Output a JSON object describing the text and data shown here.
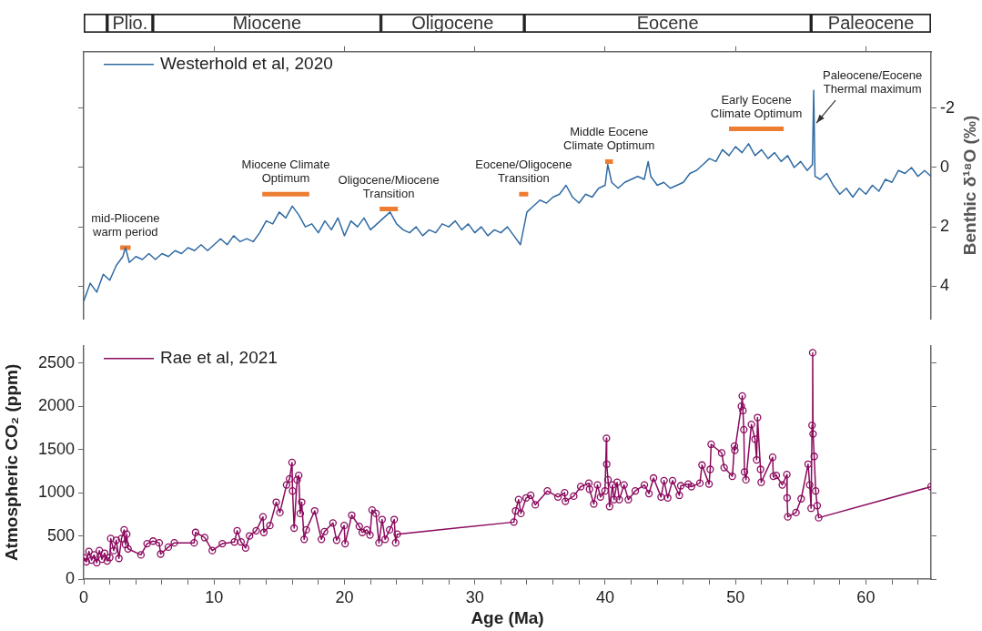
{
  "chart_data": [
    {
      "type": "bar",
      "orientation": "horizontal",
      "stacked": true,
      "categories": [
        null
      ],
      "xlim": [
        0,
        65
      ],
      "tick_labels": false,
      "series": [
        {
          "color": "#ffffff",
          "values": [
            1.8
          ],
          "value_labels": [
            null
          ]
        },
        {
          "color": "#ffffff",
          "values": [
            3.5
          ],
          "value_labels": [
            "Plio."
          ]
        },
        {
          "color": "#ffffff",
          "values": [
            17.5
          ],
          "value_labels": [
            "Miocene"
          ]
        },
        {
          "color": "#ffffff",
          "values": [
            11.0
          ],
          "value_labels": [
            "Oligocene"
          ]
        },
        {
          "color": "#ffffff",
          "values": [
            22.0
          ],
          "value_labels": [
            "Eocene"
          ]
        },
        {
          "color": "#ffffff",
          "values": [
            9.2
          ],
          "value_labels": [
            "Paleocene"
          ]
        }
      ]
    },
    {
      "type": "line",
      "xlim": [
        0,
        65
      ],
      "xticks": [
        {
          "value": 10,
          "label": null
        },
        {
          "value": 20,
          "label": null
        },
        {
          "value": 30,
          "label": null
        },
        {
          "value": 40,
          "label": null
        },
        {
          "value": 50,
          "label": null
        },
        {
          "value": 60,
          "label": null
        }
      ],
      "ylim": [
        5.1,
        -3.9
      ],
      "yticks": [
        -2,
        0,
        2,
        4
      ],
      "ylabel": "Benthic δ¹⁸O (‰)",
      "tick_labels": "y",
      "grid": false,
      "legend": "top left",
      "series": [
        {
          "name": "Westerhold et al, 2020",
          "color": "#2f6aa3",
          "x": [
            0,
            0.5,
            1,
            1.5,
            2,
            2.5,
            3,
            3.2,
            3.5,
            4,
            4.5,
            5,
            5.5,
            6,
            6.5,
            7,
            7.5,
            8,
            8.5,
            9,
            9.5,
            10,
            10.5,
            11,
            11.5,
            12,
            12.5,
            13,
            13.5,
            14,
            14.5,
            15,
            15.5,
            16,
            16.5,
            17,
            17.5,
            18,
            18.5,
            19,
            19.5,
            20,
            20.5,
            21,
            21.5,
            22,
            22.5,
            23,
            23.5,
            24,
            24.5,
            25,
            25.5,
            26,
            26.5,
            27,
            27.5,
            28,
            28.5,
            29,
            29.5,
            30,
            30.5,
            31,
            31.5,
            32,
            32.5,
            33,
            33.5,
            34,
            34.5,
            35,
            35.5,
            36,
            36.5,
            37,
            37.5,
            38,
            38.5,
            39,
            39.5,
            40,
            40.2,
            40.5,
            41,
            41.5,
            42,
            42.5,
            43,
            43.3,
            43.5,
            44,
            44.5,
            45,
            45.5,
            46,
            46.5,
            47,
            47.5,
            48,
            48.5,
            49,
            49.5,
            50,
            50.5,
            51,
            51.5,
            52,
            52.5,
            53,
            53.5,
            54,
            54.5,
            55,
            55.5,
            55.9,
            56,
            56.1,
            56.5,
            57,
            57.5,
            58,
            58.5,
            59,
            59.5,
            60,
            60.5,
            61,
            61.5,
            62,
            62.5,
            63,
            63.5,
            64,
            64.5,
            65
          ],
          "values": [
            4.5,
            3.9,
            4.2,
            3.6,
            3.8,
            3.3,
            3.0,
            2.7,
            3.2,
            3.0,
            3.1,
            2.9,
            3.1,
            2.9,
            3.0,
            2.8,
            2.9,
            2.7,
            2.8,
            2.6,
            2.8,
            2.6,
            2.4,
            2.6,
            2.3,
            2.5,
            2.4,
            2.5,
            2.2,
            1.8,
            1.9,
            1.5,
            1.7,
            1.3,
            1.6,
            2.0,
            1.9,
            2.2,
            1.8,
            2.1,
            1.7,
            2.3,
            1.8,
            2.0,
            1.7,
            2.1,
            1.9,
            1.7,
            1.5,
            1.9,
            2.1,
            2.2,
            2.0,
            2.3,
            2.1,
            2.2,
            1.9,
            2.0,
            1.8,
            2.1,
            1.9,
            2.2,
            2.0,
            2.3,
            2.1,
            2.2,
            2.0,
            2.3,
            2.6,
            1.5,
            1.3,
            1.1,
            1.2,
            1.0,
            0.9,
            0.6,
            1.0,
            1.2,
            0.9,
            1.0,
            0.7,
            0.6,
            -0.1,
            0.5,
            0.7,
            0.5,
            0.4,
            0.3,
            0.4,
            -0.2,
            0.3,
            0.6,
            0.5,
            0.7,
            0.6,
            0.5,
            0.2,
            0.1,
            -0.1,
            -0.3,
            -0.2,
            -0.6,
            -0.4,
            -0.7,
            -0.5,
            -0.8,
            -0.4,
            -0.6,
            -0.3,
            -0.5,
            -0.2,
            -0.4,
            0.0,
            -0.2,
            0.1,
            -0.1,
            -2.6,
            0.3,
            0.4,
            0.2,
            0.6,
            0.9,
            0.7,
            1.0,
            0.7,
            0.9,
            0.6,
            0.8,
            0.4,
            0.5,
            0.1,
            0.2,
            0.0,
            0.3,
            0.1,
            0.3
          ]
        },
        {
          "color": "#ed7d31",
          "x": [
            2.8,
            3.6
          ],
          "values": [
            2.7,
            2.7
          ]
        },
        {
          "color": "#ed7d31",
          "x": [
            13.7,
            17.3
          ],
          "values": [
            0.9,
            0.9
          ]
        },
        {
          "color": "#ed7d31",
          "x": [
            22.7,
            24.1
          ],
          "values": [
            1.4,
            1.4
          ]
        },
        {
          "color": "#ed7d31",
          "x": [
            33.4,
            34.1
          ],
          "values": [
            0.9,
            0.9
          ]
        },
        {
          "color": "#ed7d31",
          "x": [
            40.0,
            40.6
          ],
          "values": [
            -0.2,
            -0.2
          ]
        },
        {
          "color": "#ed7d31",
          "x": [
            49.5,
            53.7
          ],
          "values": [
            -1.3,
            -1.3
          ]
        }
      ],
      "annotations": [
        {
          "text": "mid-Pliocene\nwarm period",
          "x": 3.2,
          "y": 2.7
        },
        {
          "text": "Miocene Climate\nOptimum",
          "x": 15.5,
          "y": 0.9
        },
        {
          "text": "Oligocene/Miocene\nTransition",
          "x": 23.4,
          "y": 1.4
        },
        {
          "text": "Eocene/Oligocene\nTransition",
          "x": 33.75,
          "y": 0.9
        },
        {
          "text": "Middle Eocene\nClimate Optimum",
          "x": 40.3,
          "y": -0.2
        },
        {
          "text": "Early Eocene\nClimate Optimum",
          "x": 51.6,
          "y": -1.3
        },
        {
          "text": "Paleocene/Eocene\nThermal maximum",
          "x": 56.0,
          "y": -1.5
        }
      ]
    },
    {
      "type": "line",
      "marker": "circle",
      "xlim": [
        0,
        65
      ],
      "xticks": [
        0,
        {
          "value": 2,
          "label": null
        },
        {
          "value": 4,
          "label": null
        },
        {
          "value": 6,
          "label": null
        },
        {
          "value": 8,
          "label": null
        },
        10,
        {
          "value": 12,
          "label": null
        },
        {
          "value": 14,
          "label": null
        },
        {
          "value": 16,
          "label": null
        },
        {
          "value": 18,
          "label": null
        },
        20,
        {
          "value": 22,
          "label": null
        },
        {
          "value": 24,
          "label": null
        },
        {
          "value": 26,
          "label": null
        },
        {
          "value": 28,
          "label": null
        },
        30,
        {
          "value": 32,
          "label": null
        },
        {
          "value": 34,
          "label": null
        },
        {
          "value": 36,
          "label": null
        },
        {
          "value": 38,
          "label": null
        },
        40,
        {
          "value": 42,
          "label": null
        },
        {
          "value": 44,
          "label": null
        },
        {
          "value": 46,
          "label": null
        },
        {
          "value": 48,
          "label": null
        },
        50,
        {
          "value": 52,
          "label": null
        },
        {
          "value": 54,
          "label": null
        },
        {
          "value": 56,
          "label": null
        },
        {
          "value": 58,
          "label": null
        },
        60,
        {
          "value": 62,
          "label": null
        },
        {
          "value": 64,
          "label": null
        }
      ],
      "ylim": [
        0,
        2700
      ],
      "yticks": [
        0,
        500,
        1000,
        1500,
        2000,
        2500
      ],
      "xlabel": "Age (Ma)",
      "ylabel": "Atmospheric CO₂ (ppm)",
      "grid": false,
      "legend": "top left",
      "series": [
        {
          "name": "Rae et al, 2021",
          "color": "#8b0a5e",
          "x": [
            0,
            0.2,
            0.4,
            0.6,
            0.8,
            1,
            1.2,
            1.4,
            1.6,
            1.8,
            2,
            2.07,
            2.3,
            2.5,
            2.7,
            2.9,
            3.1,
            3.2,
            3.3,
            3.4,
            4.39,
            4.86,
            5.32,
            5.79,
            5.9,
            6.49,
            6.95,
            8.47,
            8.58,
            9.28,
            9.86,
            10.63,
            11.56,
            11.77,
            12.07,
            12.42,
            12.72,
            13.23,
            13.75,
            13.82,
            14.28,
            14.77,
            15.05,
            15.56,
            15.79,
            15.98,
            16.02,
            16.14,
            16.37,
            16.49,
            16.61,
            16.72,
            16.91,
            17.07,
            17.72,
            18.23,
            18.47,
            19.12,
            19.4,
            19.98,
            20.05,
            20.56,
            21.14,
            21.37,
            21.72,
            21.96,
            22.12,
            22.42,
            22.65,
            22.89,
            23.12,
            23.47,
            23.82,
            23.93,
            24.05,
            33,
            33.13,
            33.36,
            33.54,
            33.94,
            34.29,
            34.64,
            35.57,
            36.38,
            36.89,
            36.95,
            37.59,
            38.13,
            38.75,
            38.8,
            39.13,
            39.41,
            39.64,
            39.99,
            40.1,
            40.12,
            40.22,
            40.34,
            40.57,
            40.68,
            40.92,
            41.08,
            41.45,
            41.78,
            42.31,
            43.01,
            43.36,
            43.71,
            44.29,
            44.52,
            44.8,
            45.17,
            45.69,
            45.8,
            46.38,
            46.62,
            47.27,
            47.43,
            47.97,
            48.06,
            48.13,
            48.94,
            49.13,
            49.76,
            49.92,
            49.95,
            50.45,
            50.52,
            50.57,
            50.64,
            50.69,
            50.8,
            51.22,
            51.5,
            51.62,
            51.69,
            51.92,
            51.97,
            52.85,
            52.9,
            53.13,
            53.59,
            53.94,
            53.96,
            54.01,
            54.64,
            55.04,
            55.57,
            55.69,
            55.8,
            55.87,
            55.92,
            55.95,
            56.04,
            56.15,
            56.27,
            56.38,
            65
          ],
          "values": [
            250,
            200,
            320,
            220,
            280,
            190,
            330,
            230,
            300,
            210,
            250,
            470,
            330,
            450,
            240,
            470,
            570,
            400,
            520,
            350,
            280,
            410,
            440,
            420,
            290,
            370,
            420,
            420,
            540,
            480,
            330,
            410,
            430,
            560,
            430,
            360,
            500,
            560,
            720,
            540,
            620,
            890,
            770,
            1090,
            1160,
            1350,
            1020,
            590,
            1150,
            1200,
            760,
            890,
            460,
            570,
            790,
            460,
            550,
            650,
            450,
            620,
            410,
            740,
            610,
            540,
            570,
            510,
            800,
            760,
            420,
            690,
            460,
            570,
            690,
            420,
            520,
            660,
            790,
            920,
            760,
            940,
            970,
            860,
            1020,
            950,
            1000,
            900,
            960,
            1070,
            1110,
            1040,
            870,
            1090,
            950,
            1020,
            1630,
            1330,
            1150,
            840,
            1090,
            920,
            1120,
            920,
            1090,
            920,
            1020,
            1090,
            990,
            1170,
            950,
            1140,
            940,
            1140,
            970,
            1080,
            1100,
            1070,
            1110,
            1320,
            1100,
            1270,
            1560,
            1460,
            1290,
            1190,
            1540,
            1490,
            2000,
            2120,
            1950,
            1730,
            1240,
            1150,
            1790,
            1620,
            1380,
            1870,
            1270,
            1120,
            1410,
            1190,
            1200,
            1090,
            1210,
            940,
            720,
            770,
            930,
            1330,
            1090,
            820,
            1780,
            2620,
            1680,
            1420,
            1020,
            850,
            710,
            1070
          ]
        }
      ]
    }
  ]
}
